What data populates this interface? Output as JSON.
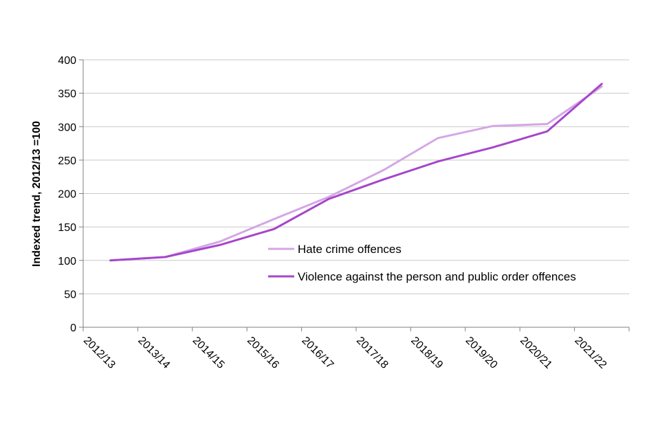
{
  "chart_data": {
    "type": "line",
    "title": "",
    "xlabel": "",
    "ylabel": "Indexed trend, 2012/13 =100",
    "categories": [
      "2012/13",
      "2013/14",
      "2014/15",
      "2015/16",
      "2016/17",
      "2017/18",
      "2018/19",
      "2019/20",
      "2020/21",
      "2021/22"
    ],
    "series": [
      {
        "name": "Hate crime offences",
        "color": "#d4a6e6",
        "values": [
          100,
          105,
          128,
          162,
          195,
          235,
          283,
          301,
          304,
          360
        ]
      },
      {
        "name": "Violence against the person and public order offences",
        "color": "#a646c9",
        "values": [
          100,
          105,
          123,
          147,
          192,
          221,
          248,
          269,
          293,
          364
        ]
      }
    ],
    "ylim": [
      0,
      400
    ],
    "yticks": [
      0,
      50,
      100,
      150,
      200,
      250,
      300,
      350,
      400
    ],
    "grid": true,
    "legend_position": "inside-center"
  }
}
